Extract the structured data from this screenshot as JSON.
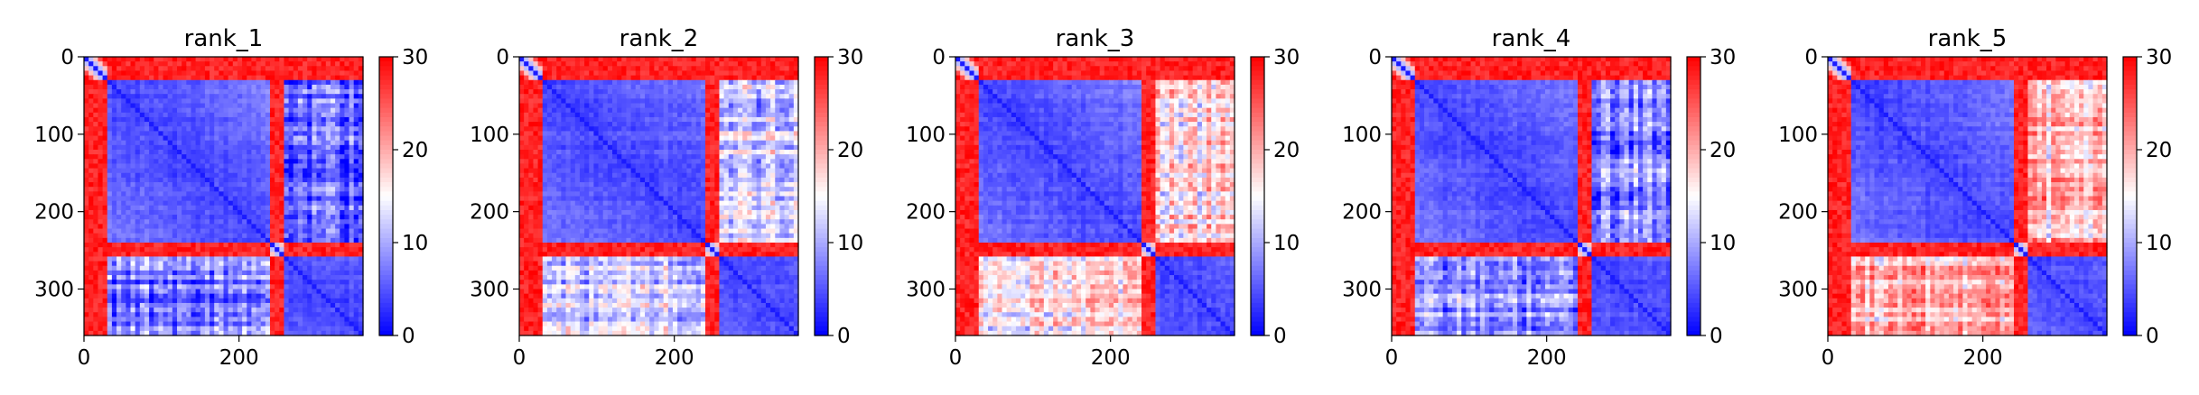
{
  "colors": {
    "low": "#0000ff",
    "mid": "#ffffff",
    "high": "#ff0000",
    "axis": "#000000"
  },
  "chart_data": [
    {
      "type": "heatmap",
      "title": "rank_1",
      "xlabel": "",
      "ylabel": "",
      "matrix_size": 360,
      "x_ticks": [
        0,
        200
      ],
      "y_ticks": [
        0,
        100,
        200,
        300
      ],
      "xlim": [
        0,
        360
      ],
      "ylim": [
        360,
        0
      ],
      "colorbar": {
        "min": 0,
        "max": 30,
        "ticks": [
          0,
          10,
          20,
          30
        ],
        "colormap": "bwr"
      },
      "domains": [
        [
          0,
          30
        ],
        [
          30,
          240
        ],
        [
          240,
          260
        ],
        [
          260,
          360
        ]
      ],
      "off_block_value_cross": 6
    },
    {
      "type": "heatmap",
      "title": "rank_2",
      "xlabel": "",
      "ylabel": "",
      "matrix_size": 360,
      "x_ticks": [
        0,
        200
      ],
      "y_ticks": [
        0,
        100,
        200,
        300
      ],
      "xlim": [
        0,
        360
      ],
      "ylim": [
        360,
        0
      ],
      "colorbar": {
        "min": 0,
        "max": 30,
        "ticks": [
          0,
          10,
          20,
          30
        ],
        "colormap": "bwr"
      },
      "domains": [
        [
          0,
          30
        ],
        [
          30,
          240
        ],
        [
          240,
          260
        ],
        [
          260,
          360
        ]
      ],
      "off_block_value_cross": 12
    },
    {
      "type": "heatmap",
      "title": "rank_3",
      "xlabel": "",
      "ylabel": "",
      "matrix_size": 360,
      "x_ticks": [
        0,
        200
      ],
      "y_ticks": [
        0,
        100,
        200,
        300
      ],
      "xlim": [
        0,
        360
      ],
      "ylim": [
        360,
        0
      ],
      "colorbar": {
        "min": 0,
        "max": 30,
        "ticks": [
          0,
          10,
          20,
          30
        ],
        "colormap": "bwr"
      },
      "domains": [
        [
          0,
          30
        ],
        [
          30,
          240
        ],
        [
          240,
          260
        ],
        [
          260,
          360
        ]
      ],
      "off_block_value_cross": 16
    },
    {
      "type": "heatmap",
      "title": "rank_4",
      "xlabel": "",
      "ylabel": "",
      "matrix_size": 360,
      "x_ticks": [
        0,
        200
      ],
      "y_ticks": [
        0,
        100,
        200,
        300
      ],
      "xlim": [
        0,
        360
      ],
      "ylim": [
        360,
        0
      ],
      "colorbar": {
        "min": 0,
        "max": 30,
        "ticks": [
          0,
          10,
          20,
          30
        ],
        "colormap": "bwr"
      },
      "domains": [
        [
          0,
          30
        ],
        [
          30,
          240
        ],
        [
          240,
          260
        ],
        [
          260,
          360
        ]
      ],
      "off_block_value_cross": 8
    },
    {
      "type": "heatmap",
      "title": "rank_5",
      "xlabel": "",
      "ylabel": "",
      "matrix_size": 360,
      "x_ticks": [
        0,
        200
      ],
      "y_ticks": [
        0,
        100,
        200,
        300
      ],
      "xlim": [
        0,
        360
      ],
      "ylim": [
        360,
        0
      ],
      "colorbar": {
        "min": 0,
        "max": 30,
        "ticks": [
          0,
          10,
          20,
          30
        ],
        "colormap": "bwr"
      },
      "domains": [
        [
          0,
          30
        ],
        [
          30,
          240
        ],
        [
          240,
          260
        ],
        [
          260,
          360
        ]
      ],
      "off_block_value_cross": 19
    }
  ]
}
